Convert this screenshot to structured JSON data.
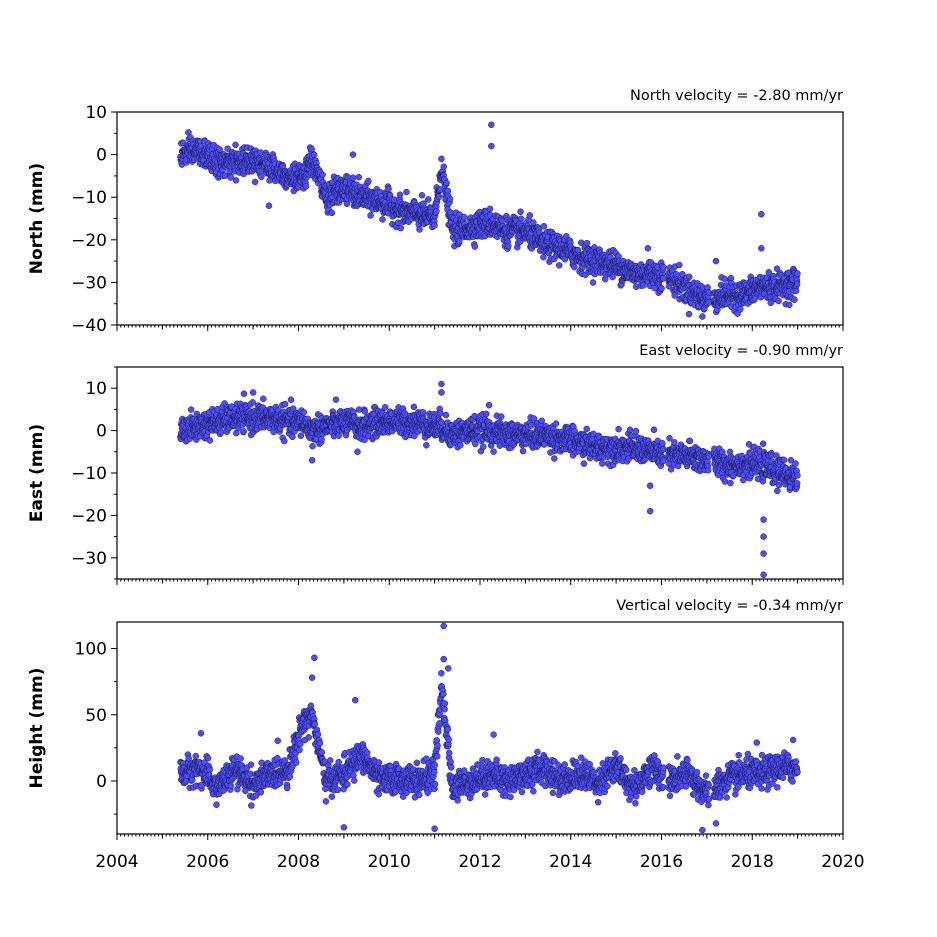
{
  "chart_data": {
    "type": "scatter",
    "x_axis": {
      "label": "",
      "range": [
        2004,
        2020
      ],
      "ticks": [
        2004,
        2006,
        2008,
        2010,
        2012,
        2014,
        2016,
        2018,
        2020
      ],
      "tick_labels": [
        "2004",
        "2006",
        "2008",
        "2010",
        "2012",
        "2014",
        "2016",
        "2018",
        "2020"
      ]
    },
    "panels": [
      {
        "id": "north",
        "title": "North velocity = -2.80 mm/yr",
        "ylabel": "North (mm)",
        "ylim": [
          -40,
          10
        ],
        "yticks": [
          10,
          0,
          -10,
          -20,
          -30,
          -40
        ],
        "ytick_labels": [
          "10",
          "0",
          "−10",
          "−20",
          "−30",
          "−40"
        ],
        "series": [
          {
            "x": [
              2005.4,
              2005.8,
              2006.2,
              2006.6,
              2007.0,
              2007.4,
              2007.8,
              2008.1,
              2008.3,
              2008.6,
              2009.0,
              2009.4,
              2009.8,
              2010.2,
              2010.6,
              2011.0,
              2011.15,
              2011.4,
              2011.8,
              2012.2,
              2012.6,
              2013.0,
              2013.4,
              2013.8,
              2014.2,
              2014.6,
              2015.0,
              2015.4,
              2015.8,
              2016.2,
              2016.6,
              2017.0,
              2017.4,
              2017.8,
              2018.2,
              2018.6,
              2019.0
            ],
            "y": [
              0,
              1,
              -2,
              -2,
              -1,
              -3,
              -5,
              -6,
              -1,
              -10,
              -8,
              -10,
              -11,
              -13,
              -14,
              -15,
              -3,
              -18,
              -17,
              -16,
              -18,
              -18,
              -21,
              -22,
              -24,
              -25,
              -26,
              -28,
              -28,
              -29,
              -32,
              -34,
              -33,
              -33,
              -31,
              -31,
              -30
            ]
          }
        ],
        "outliers": [
          {
            "x": 2012.25,
            "y": 7
          },
          {
            "x": 2012.25,
            "y": 2
          },
          {
            "x": 2018.2,
            "y": -14
          },
          {
            "x": 2018.2,
            "y": -22
          },
          {
            "x": 2007.35,
            "y": -12
          },
          {
            "x": 2009.2,
            "y": 0
          },
          {
            "x": 2011.15,
            "y": -1
          },
          {
            "x": 2015.7,
            "y": -22
          },
          {
            "x": 2016.9,
            "y": -38
          },
          {
            "x": 2017.2,
            "y": -25
          }
        ]
      },
      {
        "id": "east",
        "title": "East velocity = -0.90 mm/yr",
        "ylabel": "East (mm)",
        "ylim": [
          -35,
          15
        ],
        "yticks": [
          10,
          0,
          -10,
          -20,
          -30
        ],
        "ytick_labels": [
          "10",
          "0",
          "−10",
          "−20",
          "−30"
        ],
        "series": [
          {
            "x": [
              2005.4,
              2005.8,
              2006.2,
              2006.6,
              2007.0,
              2007.4,
              2007.8,
              2008.1,
              2008.3,
              2008.6,
              2009.0,
              2009.4,
              2009.8,
              2010.2,
              2010.6,
              2011.0,
              2011.15,
              2011.4,
              2011.8,
              2012.2,
              2012.6,
              2013.0,
              2013.4,
              2013.8,
              2014.2,
              2014.6,
              2015.0,
              2015.4,
              2015.8,
              2016.2,
              2016.6,
              2017.0,
              2017.4,
              2017.8,
              2018.2,
              2018.6,
              2019.0
            ],
            "y": [
              0,
              1,
              2,
              3,
              3,
              3,
              2,
              2,
              0,
              1,
              2,
              1,
              2,
              2,
              2,
              1,
              1,
              -1,
              0,
              0,
              -1,
              -1,
              -1,
              -2,
              -3,
              -4,
              -4,
              -4,
              -5,
              -6,
              -6,
              -7,
              -8,
              -8,
              -8,
              -10,
              -11
            ]
          }
        ],
        "outliers": [
          {
            "x": 2011.15,
            "y": 11
          },
          {
            "x": 2011.15,
            "y": 9
          },
          {
            "x": 2007.0,
            "y": 9
          },
          {
            "x": 2015.75,
            "y": -19
          },
          {
            "x": 2015.75,
            "y": -13
          },
          {
            "x": 2018.25,
            "y": -21
          },
          {
            "x": 2018.25,
            "y": -25
          },
          {
            "x": 2018.25,
            "y": -29
          },
          {
            "x": 2018.25,
            "y": -34
          },
          {
            "x": 2008.3,
            "y": -7
          },
          {
            "x": 2009.3,
            "y": -5
          },
          {
            "x": 2012.2,
            "y": 6
          }
        ]
      },
      {
        "id": "height",
        "title": "Vertical velocity = -0.34 mm/yr",
        "ylabel": "Height (mm)",
        "ylim": [
          -40,
          120
        ],
        "yticks": [
          100,
          50,
          0
        ],
        "ytick_labels": [
          "100",
          "50",
          "0"
        ],
        "series": [
          {
            "x": [
              2005.4,
              2005.8,
              2006.2,
              2006.6,
              2007.0,
              2007.4,
              2007.8,
              2008.1,
              2008.3,
              2008.6,
              2009.0,
              2009.4,
              2009.8,
              2010.2,
              2010.6,
              2011.0,
              2011.15,
              2011.4,
              2011.8,
              2012.2,
              2012.6,
              2013.0,
              2013.4,
              2013.8,
              2014.2,
              2014.6,
              2015.0,
              2015.4,
              2015.8,
              2016.2,
              2016.6,
              2017.0,
              2017.4,
              2017.8,
              2018.2,
              2018.6,
              2019.0
            ],
            "y": [
              5,
              10,
              -5,
              8,
              -3,
              5,
              10,
              45,
              50,
              0,
              5,
              20,
              0,
              2,
              0,
              5,
              70,
              -5,
              0,
              5,
              0,
              5,
              10,
              0,
              5,
              0,
              10,
              -5,
              10,
              0,
              5,
              -10,
              0,
              5,
              5,
              10,
              10
            ]
          }
        ],
        "outliers": [
          {
            "x": 2008.35,
            "y": 93
          },
          {
            "x": 2008.3,
            "y": 78
          },
          {
            "x": 2011.2,
            "y": 117
          },
          {
            "x": 2011.2,
            "y": 92
          },
          {
            "x": 2011.3,
            "y": 85
          },
          {
            "x": 2009.25,
            "y": 61
          },
          {
            "x": 2005.85,
            "y": 36
          },
          {
            "x": 2012.3,
            "y": 35
          },
          {
            "x": 2009.0,
            "y": -35
          },
          {
            "x": 2011.0,
            "y": -36
          },
          {
            "x": 2016.9,
            "y": -37
          },
          {
            "x": 2017.2,
            "y": -32
          },
          {
            "x": 2018.1,
            "y": 29
          },
          {
            "x": 2018.9,
            "y": 31
          }
        ]
      }
    ]
  }
}
